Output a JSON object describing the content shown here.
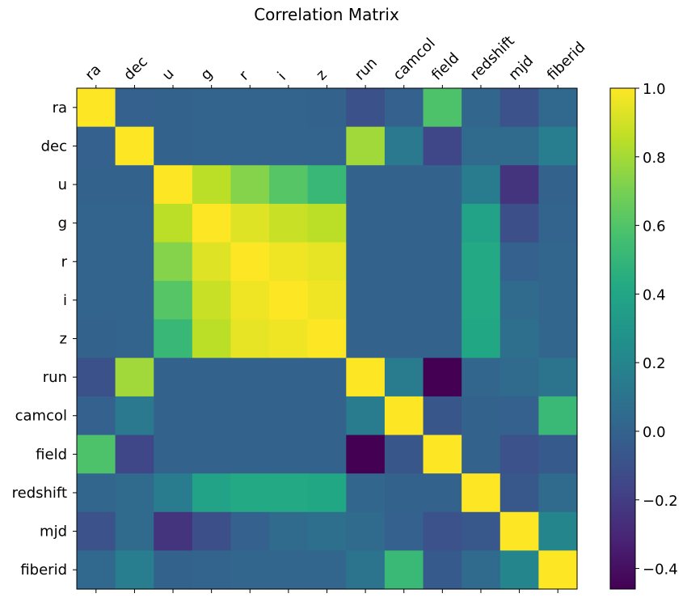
{
  "chart_data": {
    "type": "heatmap",
    "title": "Correlation Matrix",
    "labels": [
      "ra",
      "dec",
      "u",
      "g",
      "r",
      "i",
      "z",
      "run",
      "camcol",
      "field",
      "redshift",
      "mjd",
      "fiberid"
    ],
    "matrix": [
      [
        1.0,
        -0.01,
        0.0,
        0.01,
        0.01,
        0.01,
        0.0,
        -0.1,
        -0.01,
        0.59,
        0.02,
        -0.09,
        0.03
      ],
      [
        -0.01,
        1.0,
        0.0,
        0.01,
        0.01,
        0.01,
        0.01,
        0.79,
        0.13,
        -0.15,
        0.05,
        0.05,
        0.16
      ],
      [
        0.0,
        0.0,
        1.0,
        0.85,
        0.73,
        0.61,
        0.51,
        0.0,
        0.0,
        0.0,
        0.15,
        -0.24,
        0.0
      ],
      [
        0.01,
        0.01,
        0.85,
        1.0,
        0.93,
        0.88,
        0.85,
        0.0,
        0.0,
        0.0,
        0.38,
        -0.11,
        0.01
      ],
      [
        0.01,
        0.01,
        0.73,
        0.93,
        1.0,
        0.97,
        0.95,
        0.0,
        0.0,
        0.0,
        0.42,
        -0.01,
        0.02
      ],
      [
        0.01,
        0.01,
        0.61,
        0.88,
        0.97,
        1.0,
        0.97,
        0.0,
        0.0,
        0.0,
        0.42,
        0.04,
        0.02
      ],
      [
        0.0,
        0.01,
        0.51,
        0.85,
        0.95,
        0.97,
        1.0,
        0.0,
        0.0,
        0.0,
        0.41,
        0.07,
        0.02
      ],
      [
        -0.1,
        0.79,
        0.0,
        0.0,
        0.0,
        0.0,
        0.0,
        1.0,
        0.14,
        -0.46,
        0.02,
        0.04,
        0.1
      ],
      [
        -0.01,
        0.13,
        0.0,
        0.0,
        0.0,
        0.0,
        0.0,
        0.14,
        1.0,
        -0.07,
        0.0,
        -0.01,
        0.52
      ],
      [
        0.59,
        -0.15,
        0.0,
        0.0,
        0.0,
        0.0,
        0.0,
        -0.46,
        -0.07,
        1.0,
        0.0,
        -0.09,
        -0.05
      ],
      [
        0.02,
        0.05,
        0.15,
        0.38,
        0.42,
        0.42,
        0.41,
        0.02,
        0.0,
        0.0,
        1.0,
        -0.06,
        0.04
      ],
      [
        -0.09,
        0.05,
        -0.24,
        -0.11,
        -0.01,
        0.04,
        0.07,
        0.04,
        -0.01,
        -0.09,
        -0.06,
        1.0,
        0.2
      ],
      [
        0.03,
        0.16,
        0.0,
        0.01,
        0.02,
        0.02,
        0.02,
        0.1,
        0.52,
        -0.05,
        0.04,
        0.2,
        1.0
      ]
    ],
    "vmin": -0.46,
    "vmax": 1.0,
    "colormap": "viridis",
    "colorbar": {
      "ticks": [
        -0.4,
        -0.2,
        0.0,
        0.2,
        0.4,
        0.6,
        0.8,
        1.0
      ],
      "tick_labels": [
        "−0.4",
        "−0.2",
        "0.0",
        "0.2",
        "0.4",
        "0.6",
        "0.8",
        "1.0"
      ]
    },
    "grid": false,
    "legend": "colorbar-right"
  }
}
